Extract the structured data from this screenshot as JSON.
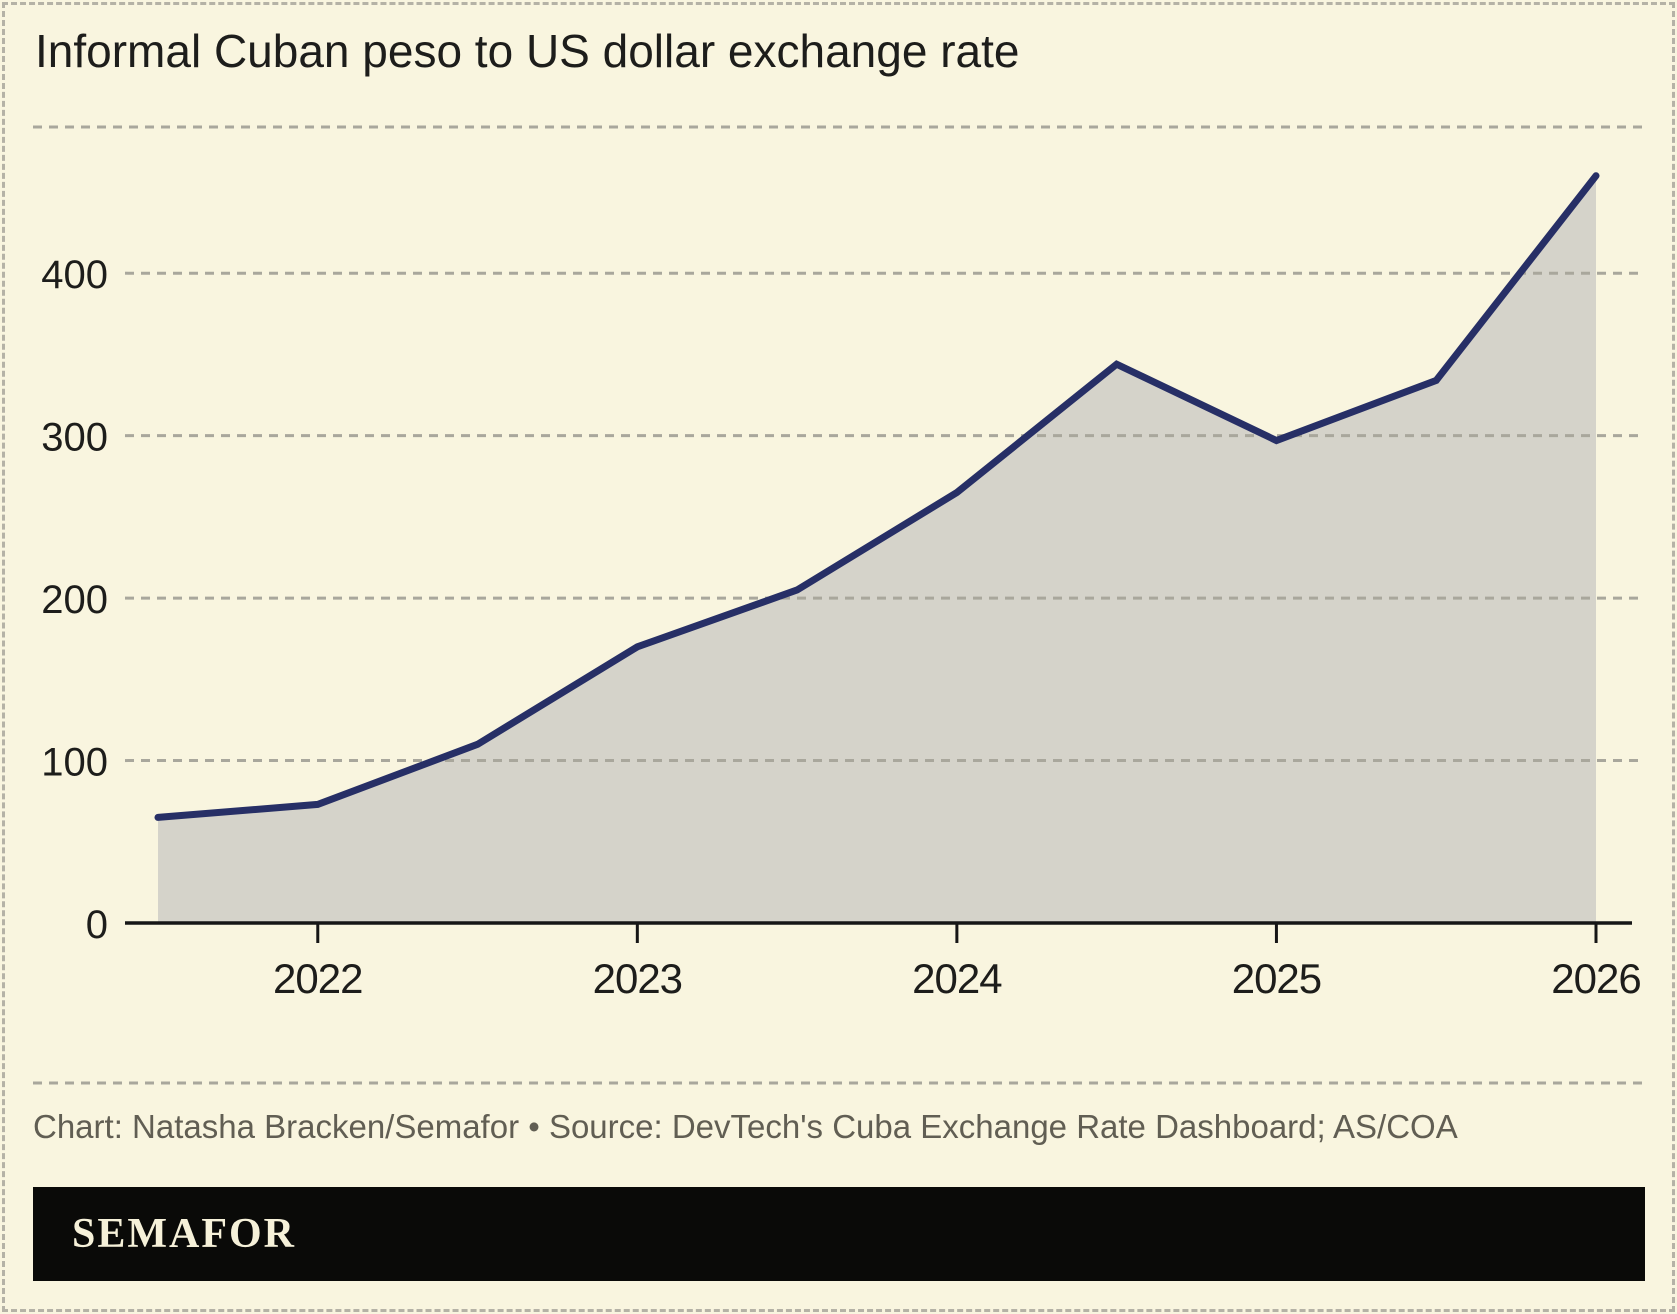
{
  "page": {
    "title": "Informal Cuban peso to US dollar exchange rate",
    "caption": "Chart: Natasha Bracken/Semafor • Source: DevTech's Cuba Exchange Rate Dashboard; AS/COA",
    "logo_text": "SEMAFOR"
  },
  "colors": {
    "background": "#f9f5df",
    "line": "#272f66",
    "area_fill": "#d5d3ca",
    "gridline": "#a9a79c",
    "axis": "#161616",
    "tick_label": "#1d1d1b",
    "caption_text": "#615e53",
    "logo_bg": "#0a0a08",
    "logo_text": "#f6f1d9",
    "border": "#b5b2a6"
  },
  "chart_data": {
    "type": "area",
    "title": "Informal Cuban peso to US dollar exchange rate",
    "x": [
      2021.5,
      2022,
      2022.5,
      2023,
      2023.5,
      2024,
      2024.5,
      2025,
      2025.5,
      2026
    ],
    "values": [
      65,
      73,
      110,
      170,
      205,
      265,
      344,
      297,
      334,
      460
    ],
    "xlabel": "",
    "ylabel": "",
    "x_tick_values": [
      2022,
      2023,
      2024,
      2025,
      2026
    ],
    "x_tick_labels": [
      "2022",
      "2023",
      "2024",
      "2025",
      "2026"
    ],
    "y_ticks": [
      0,
      100,
      200,
      300,
      400
    ],
    "xlim": [
      2021.5,
      2026
    ],
    "ylim": [
      0,
      490
    ],
    "grid": "horizontal-dashed",
    "legend": "none"
  }
}
